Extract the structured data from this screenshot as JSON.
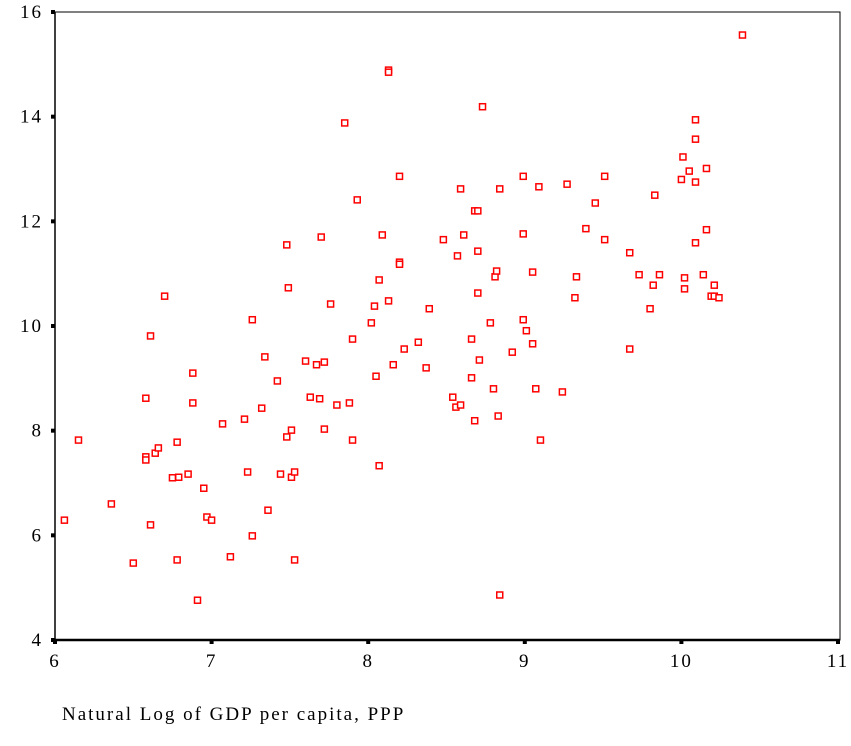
{
  "chart_data": {
    "type": "scatter",
    "x_label": "Natural Log of GDP per capita, PPP",
    "xlim": [
      6,
      11
    ],
    "ylim": [
      4,
      16
    ],
    "xticks": [
      6,
      7,
      8,
      9,
      10,
      11
    ],
    "yticks": [
      4,
      6,
      8,
      10,
      12,
      14,
      16
    ],
    "color": "#ff0000",
    "x": [
      6.06,
      6.15,
      6.36,
      6.5,
      6.58,
      6.58,
      6.58,
      6.61,
      6.61,
      6.64,
      6.66,
      6.7,
      6.75,
      6.78,
      6.78,
      6.79,
      6.85,
      6.88,
      6.88,
      6.91,
      6.95,
      6.97,
      7.0,
      7.07,
      7.12,
      7.21,
      7.23,
      7.26,
      7.26,
      7.32,
      7.34,
      7.36,
      7.42,
      7.44,
      7.48,
      7.48,
      7.49,
      7.51,
      7.51,
      7.53,
      7.53,
      7.6,
      7.63,
      7.67,
      7.69,
      7.7,
      7.72,
      7.72,
      7.76,
      7.8,
      7.85,
      7.88,
      7.9,
      7.9,
      7.93,
      8.02,
      8.04,
      8.05,
      8.07,
      8.07,
      8.09,
      8.13,
      8.13,
      8.13,
      8.16,
      8.2,
      8.2,
      8.2,
      8.23,
      8.32,
      8.37,
      8.39,
      8.48,
      8.54,
      8.56,
      8.57,
      8.59,
      8.59,
      8.61,
      8.66,
      8.66,
      8.68,
      8.68,
      8.7,
      8.7,
      8.7,
      8.71,
      8.73,
      8.78,
      8.8,
      8.81,
      8.82,
      8.83,
      8.84,
      8.84,
      8.92,
      8.99,
      8.99,
      8.99,
      9.01,
      9.05,
      9.05,
      9.07,
      9.09,
      9.1,
      9.24,
      9.27,
      9.32,
      9.33,
      9.39,
      9.45,
      9.51,
      9.51,
      9.67,
      9.67,
      9.73,
      9.8,
      9.82,
      9.83,
      9.86,
      10.0,
      10.01,
      10.02,
      10.02,
      10.05,
      10.09,
      10.09,
      10.09,
      10.09,
      10.14,
      10.16,
      10.16,
      10.19,
      10.21,
      10.21,
      10.24,
      10.39
    ],
    "values": [
      6.29,
      7.82,
      6.6,
      5.47,
      7.5,
      7.44,
      8.62,
      9.81,
      6.2,
      7.57,
      7.67,
      10.57,
      7.1,
      7.78,
      5.53,
      7.11,
      7.17,
      9.1,
      8.53,
      4.76,
      6.9,
      6.35,
      6.29,
      8.13,
      5.59,
      8.22,
      7.21,
      5.99,
      10.12,
      8.43,
      9.41,
      6.48,
      8.95,
      7.17,
      7.88,
      11.55,
      10.73,
      8.01,
      7.11,
      7.21,
      5.53,
      9.33,
      8.64,
      9.26,
      8.61,
      11.7,
      9.31,
      8.03,
      10.42,
      8.49,
      13.88,
      8.53,
      9.75,
      7.82,
      12.41,
      10.06,
      10.38,
      9.04,
      10.88,
      7.33,
      11.74,
      10.48,
      14.89,
      14.85,
      9.26,
      12.86,
      11.22,
      11.18,
      9.56,
      9.69,
      9.2,
      10.33,
      11.65,
      8.64,
      8.45,
      11.34,
      8.49,
      12.62,
      11.74,
      9.01,
      9.75,
      8.19,
      12.2,
      12.2,
      10.63,
      11.43,
      9.35,
      14.19,
      10.06,
      8.8,
      10.94,
      11.05,
      8.28,
      4.86,
      12.62,
      9.5,
      12.86,
      11.76,
      10.12,
      9.91,
      9.66,
      11.03,
      8.8,
      12.66,
      7.82,
      8.74,
      12.71,
      10.54,
      10.94,
      11.86,
      12.35,
      12.86,
      11.65,
      9.56,
      11.4,
      10.98,
      10.33,
      10.78,
      12.5,
      10.98,
      12.8,
      13.23,
      10.71,
      10.92,
      12.96,
      13.94,
      13.57,
      12.75,
      11.59,
      10.98,
      13.01,
      11.84,
      10.57,
      10.57,
      10.78,
      10.54,
      15.56
    ]
  }
}
